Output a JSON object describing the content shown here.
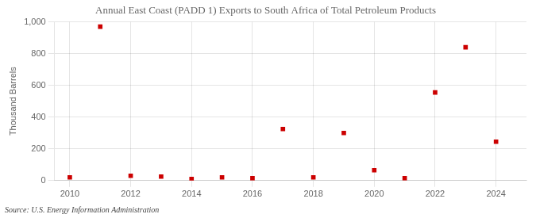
{
  "chart_data": {
    "type": "scatter",
    "title": "Annual East Coast (PADD 1) Exports to South Africa of Total Petroleum Products",
    "y_label": "Thousand Barrels",
    "annotations": [
      "Source: U.S. Energy Information Administration"
    ],
    "x": [
      2010,
      2011,
      2012,
      2013,
      2014,
      2015,
      2016,
      2017,
      2018,
      2019,
      2020,
      2021,
      2022,
      2023,
      2024
    ],
    "values": [
      20,
      970,
      30,
      25,
      10,
      20,
      15,
      325,
      20,
      300,
      65,
      15,
      555,
      840,
      245
    ],
    "color": "#cc0000",
    "marker": "square",
    "xlim": [
      2009.5,
      2025.0
    ],
    "xticks": [
      2010,
      2012,
      2014,
      2016,
      2018,
      2020,
      2022,
      2024
    ],
    "ylim": [
      0,
      1000
    ],
    "yticks": [
      0,
      200,
      400,
      600,
      800,
      {
        "value": 1000,
        "label": "1,000"
      }
    ],
    "grid": true
  }
}
